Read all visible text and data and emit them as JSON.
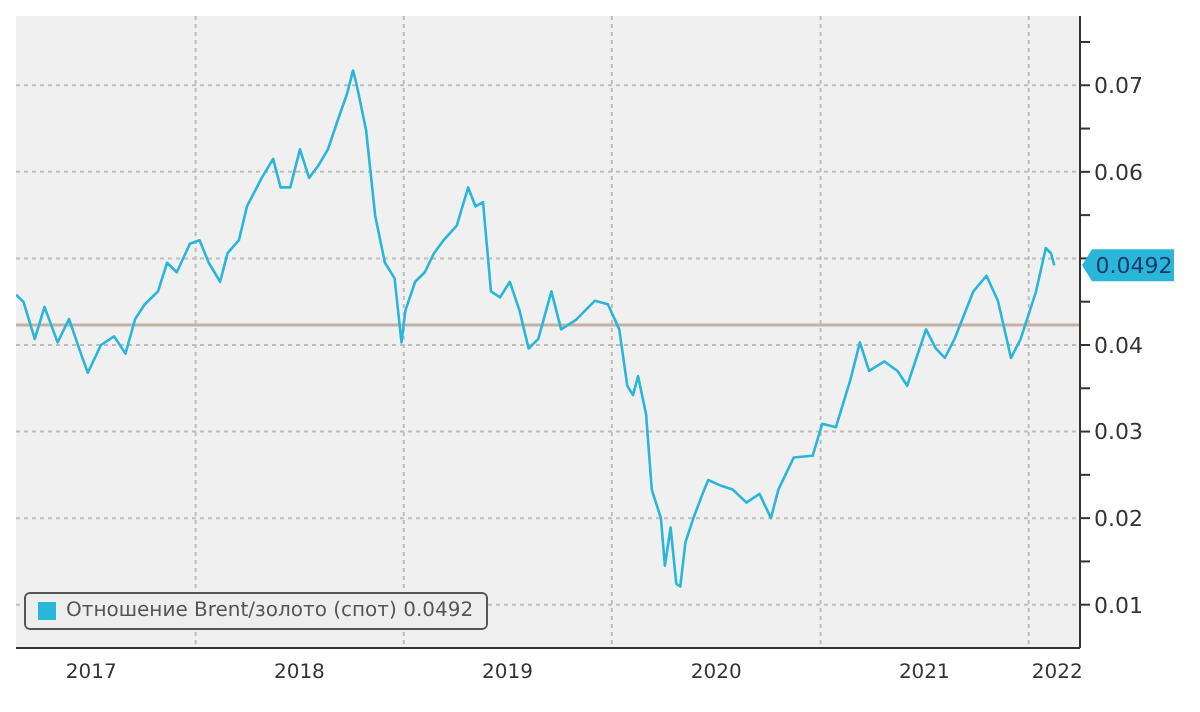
{
  "chart_data": {
    "type": "line",
    "x": [
      "2017-02-20",
      "2017-03-05",
      "2017-03-25",
      "2017-04-11",
      "2017-05-04",
      "2017-05-24",
      "2017-06-16",
      "2017-06-26",
      "2017-07-19",
      "2017-08-11",
      "2017-08-31",
      "2017-09-17",
      "2017-10-04",
      "2017-10-27",
      "2017-11-12",
      "2017-11-29",
      "2017-12-22",
      "2018-01-08",
      "2018-01-24",
      "2018-02-13",
      "2018-02-26",
      "2018-03-18",
      "2018-04-01",
      "2018-04-27",
      "2018-05-17",
      "2018-05-30",
      "2018-06-16",
      "2018-07-03",
      "2018-07-19",
      "2018-08-05",
      "2018-08-21",
      "2018-09-07",
      "2018-09-24",
      "2018-10-04",
      "2018-10-10",
      "2018-10-27",
      "2018-11-12",
      "2018-11-29",
      "2018-12-16",
      "2018-12-28",
      "2019-01-04",
      "2019-01-21",
      "2019-02-07",
      "2019-02-23",
      "2019-03-12",
      "2019-04-04",
      "2019-04-24",
      "2019-05-07",
      "2019-05-20",
      "2019-06-03",
      "2019-06-19",
      "2019-07-06",
      "2019-07-23",
      "2019-08-08",
      "2019-08-25",
      "2019-09-17",
      "2019-10-04",
      "2019-10-30",
      "2019-12-02",
      "2019-12-25",
      "2020-01-14",
      "2020-01-28",
      "2020-02-07",
      "2020-02-16",
      "2020-03-01",
      "2020-03-11",
      "2020-03-27",
      "2020-04-03",
      "2020-04-13",
      "2020-04-23",
      "2020-04-30",
      "2020-05-09",
      "2020-05-23",
      "2020-06-08",
      "2020-06-18",
      "2020-07-12",
      "2020-07-31",
      "2020-08-24",
      "2020-09-16",
      "2020-10-06",
      "2020-10-19",
      "2020-11-15",
      "2020-12-18",
      "2021-01-04",
      "2021-01-28",
      "2021-02-22",
      "2021-03-11",
      "2021-03-27",
      "2021-04-23",
      "2021-05-16",
      "2021-06-02",
      "2021-06-18",
      "2021-07-05",
      "2021-07-22",
      "2021-08-07",
      "2021-08-24",
      "2021-09-26",
      "2021-10-19",
      "2021-11-08",
      "2021-12-01",
      "2021-12-18",
      "2022-01-14",
      "2022-01-31",
      "2022-02-09",
      "2022-02-15"
    ],
    "series": [
      {
        "name": "Отношение Brent/золото (спот) 0.0492",
        "color": "#29b6d8",
        "values": [
          0.0458,
          0.045,
          0.0407,
          0.0444,
          0.0403,
          0.043,
          0.0386,
          0.0368,
          0.04,
          0.041,
          0.039,
          0.043,
          0.0447,
          0.0462,
          0.0495,
          0.0484,
          0.0517,
          0.0521,
          0.0495,
          0.0473,
          0.0506,
          0.0521,
          0.056,
          0.0593,
          0.0615,
          0.0582,
          0.0582,
          0.0626,
          0.0593,
          0.0608,
          0.0626,
          0.0659,
          0.0691,
          0.0717,
          0.0702,
          0.0648,
          0.0549,
          0.0495,
          0.0477,
          0.0403,
          0.044,
          0.0473,
          0.0484,
          0.0506,
          0.0521,
          0.0538,
          0.0582,
          0.056,
          0.0565,
          0.0462,
          0.0455,
          0.0473,
          0.044,
          0.0396,
          0.0407,
          0.0462,
          0.0418,
          0.0429,
          0.0451,
          0.0447,
          0.0418,
          0.0353,
          0.0342,
          0.0364,
          0.032,
          0.0233,
          0.02,
          0.0145,
          0.0189,
          0.0124,
          0.0121,
          0.0172,
          0.02,
          0.0228,
          0.0244,
          0.0237,
          0.0233,
          0.0218,
          0.0228,
          0.02,
          0.0233,
          0.027,
          0.0272,
          0.0309,
          0.0305,
          0.0359,
          0.0403,
          0.037,
          0.0381,
          0.037,
          0.0353,
          0.0385,
          0.0418,
          0.0396,
          0.0385,
          0.0407,
          0.0462,
          0.048,
          0.0451,
          0.0385,
          0.0407,
          0.0462,
          0.0512,
          0.0506,
          0.0492
        ]
      }
    ],
    "xlim": [
      "2017-02-20",
      "2022-04-01"
    ],
    "xticks": [
      {
        "value": "2017-07-02",
        "label": "2017"
      },
      {
        "value": "2018-01-01",
        "label": null
      },
      {
        "value": "2018-07-02",
        "label": "2018"
      },
      {
        "value": "2019-01-01",
        "label": null
      },
      {
        "value": "2019-07-02",
        "label": "2019"
      },
      {
        "value": "2020-01-01",
        "label": null
      },
      {
        "value": "2020-07-02",
        "label": "2020"
      },
      {
        "value": "2021-01-01",
        "label": null
      },
      {
        "value": "2021-07-02",
        "label": "2021"
      },
      {
        "value": "2022-01-01",
        "label": null
      },
      {
        "value": "2022-02-20",
        "label": "2022"
      }
    ],
    "ylim": [
      0.005,
      0.078
    ],
    "yticks": [
      0.01,
      {
        "value": 0.015,
        "label": null
      },
      0.02,
      {
        "value": 0.025,
        "label": null
      },
      0.03,
      {
        "value": 0.035,
        "label": null
      },
      0.04,
      {
        "value": 0.045,
        "label": null
      },
      {
        "value": 0.05,
        "label": null
      },
      {
        "value": 0.055,
        "label": null
      },
      0.06,
      {
        "value": 0.065,
        "label": null
      },
      0.07,
      {
        "value": 0.075,
        "label": null
      }
    ],
    "ref_lines": [
      {
        "axis": "y",
        "value": 0.0423,
        "color": "#c4b0a4"
      }
    ],
    "annotations": [
      {
        "text": "0.0492",
        "x": "2022-02-15",
        "y": 0.0492
      }
    ],
    "grid": true,
    "legend": "bottom left",
    "marker": "none",
    "line_style": "solid"
  }
}
